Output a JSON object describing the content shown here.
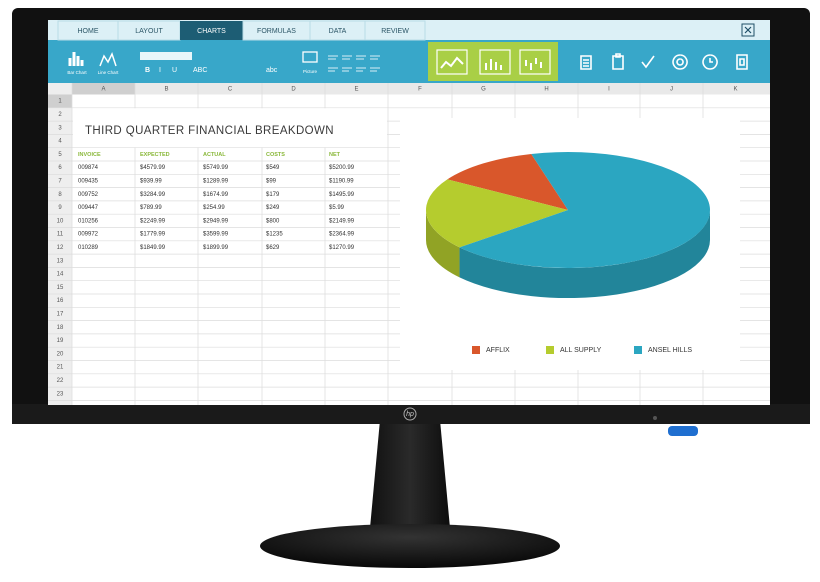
{
  "tabs": [
    "HOME",
    "LAYOUT",
    "CHARTS",
    "FORMULAS",
    "DATA",
    "REVIEW"
  ],
  "ribbon": {
    "bar_chart": "Bar Chart",
    "line_chart": "Line Chart",
    "picture": "Picture",
    "bold": "B",
    "italic": "I",
    "underline": "U",
    "strike": "ABC",
    "spell": "abc"
  },
  "sheet": {
    "columns": [
      "A",
      "B",
      "C",
      "D",
      "E",
      "F",
      "G",
      "H",
      "I",
      "J",
      "K"
    ],
    "rows": [
      "1",
      "2",
      "3",
      "4",
      "5",
      "6",
      "7",
      "8",
      "9",
      "10",
      "11",
      "12",
      "13",
      "14",
      "15",
      "16",
      "17",
      "18",
      "19",
      "20",
      "21",
      "22",
      "23"
    ],
    "title": "THIRD QUARTER FINANCIAL BREAKDOWN",
    "table": {
      "header": [
        "INVOICE",
        "EXPECTED",
        "ACTUAL",
        "COSTS",
        "NET"
      ],
      "rows": [
        [
          "009874",
          "$4579.99",
          "$5749.99",
          "$549",
          "$5200.99"
        ],
        [
          "009435",
          "$939.99",
          "$1289.99",
          "$99",
          "$1190.99"
        ],
        [
          "009752",
          "$3284.99",
          "$1674.99",
          "$179",
          "$1495.99"
        ],
        [
          "009447",
          "$789.99",
          "$254.99",
          "$249",
          "$5.99"
        ],
        [
          "010256",
          "$2249.99",
          "$2949.99",
          "$800",
          "$2149.99"
        ],
        [
          "009972",
          "$1779.99",
          "$3599.99",
          "$1235",
          "$2364.99"
        ],
        [
          "010289",
          "$1849.99",
          "$1899.99",
          "$629",
          "$1270.99"
        ]
      ]
    }
  },
  "chart_data": {
    "type": "pie",
    "categories": [
      "AFFLIX",
      "ALL SUPPLY",
      "ANSEL HILLS"
    ],
    "values": [
      12,
      20,
      68
    ],
    "colors": [
      "#d9572b",
      "#b5cc2e",
      "#2ba6c1"
    ],
    "legend": "bottom"
  },
  "monitor": {
    "logo": "hp"
  }
}
